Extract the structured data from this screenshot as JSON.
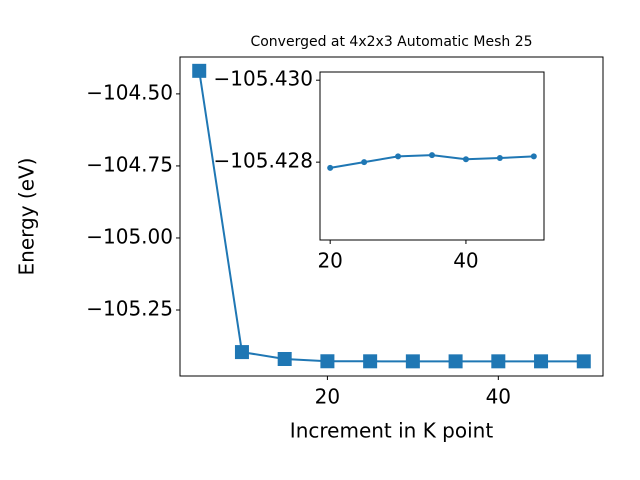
{
  "chart_data": [
    {
      "type": "line",
      "title": "Converged at 4x2x3 Automatic Mesh 25",
      "x_label": "Increment in K point",
      "y_label": "Energy (eV)",
      "x": [
        5,
        10,
        15,
        20,
        25,
        30,
        35,
        40,
        45,
        50
      ],
      "series": [
        {
          "color": "#1f77b4",
          "marker": "square",
          "values": [
            -104.42,
            -105.396,
            -105.42,
            -105.42786,
            -105.428,
            -105.42814,
            -105.42817,
            -105.42807,
            -105.4281,
            -105.42814
          ]
        }
      ],
      "xlim": [
        2.75,
        52.25
      ],
      "xticks": [
        20,
        40
      ],
      "ylim": [
        -105.479,
        -104.372
      ],
      "yticks": [
        {
          "value": -105.25,
          "label": "−105.25"
        },
        {
          "value": -105.0,
          "label": "−105.00"
        },
        {
          "value": -104.75,
          "label": "−104.75"
        },
        {
          "value": -104.5,
          "label": "−104.50"
        }
      ]
    },
    {
      "type": "line",
      "x": [
        20,
        25,
        30,
        35,
        40,
        45,
        50
      ],
      "series": [
        {
          "color": "#1f77b4",
          "marker": "circle",
          "values": [
            -105.42786,
            -105.428,
            -105.42814,
            -105.42817,
            -105.42807,
            -105.4281,
            -105.42814
          ]
        }
      ],
      "xlim": [
        18.5,
        51.5
      ],
      "xticks": [
        20,
        40
      ],
      "ylim": [
        -105.4261,
        -105.4302
      ],
      "yticks": [
        {
          "value": -105.428,
          "label": "−105.428"
        },
        {
          "value": -105.43,
          "label": "−105.430"
        }
      ]
    }
  ]
}
